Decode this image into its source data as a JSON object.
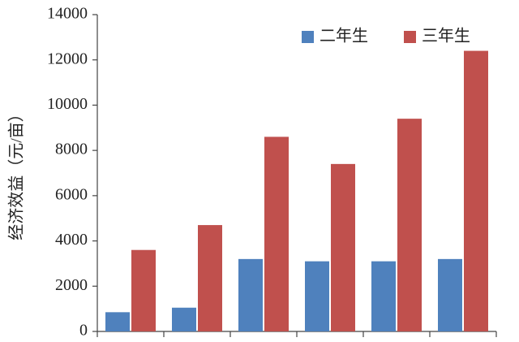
{
  "chart_data": {
    "type": "bar",
    "y_label": "经济效益（元/亩）",
    "categories": [
      null,
      null,
      null,
      null,
      null,
      null
    ],
    "series": [
      {
        "name": "二年生",
        "color": "#4f81bd",
        "values": [
          850,
          1050,
          3200,
          3100,
          3100,
          3200
        ]
      },
      {
        "name": "三年生",
        "color": "#c0504d",
        "values": [
          3600,
          4700,
          8600,
          7400,
          9400,
          12400
        ]
      }
    ],
    "ylim": [
      0,
      14000
    ],
    "yticks": [
      0,
      2000,
      4000,
      6000,
      8000,
      10000,
      12000,
      14000
    ],
    "grid": false,
    "legend": "top-right"
  }
}
